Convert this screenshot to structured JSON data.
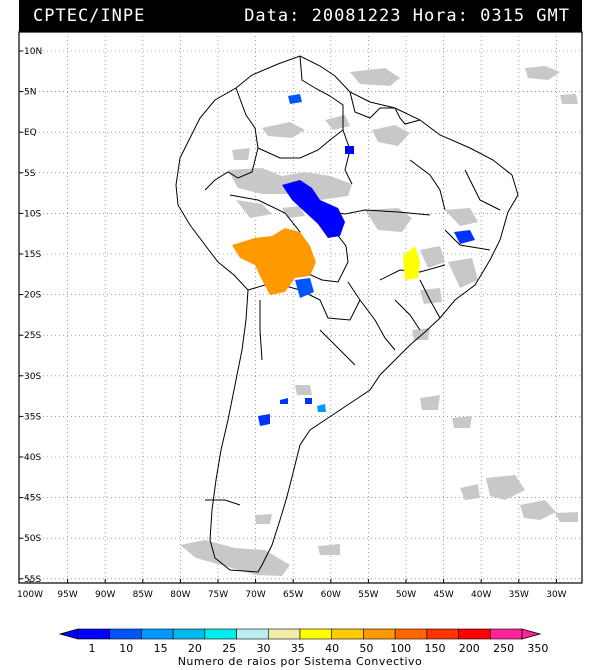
{
  "header": {
    "institution": "CPTEC/INPE",
    "datetime": "Data: 20081223 Hora: 0315 GMT"
  },
  "lat_labels": [
    "10N",
    "5N",
    "EQ",
    "5S",
    "10S",
    "15S",
    "20S",
    "25S",
    "30S",
    "35S",
    "40S",
    "45S",
    "50S",
    "55S"
  ],
  "lon_labels": [
    "100W",
    "95W",
    "90W",
    "85W",
    "80W",
    "75W",
    "70W",
    "65W",
    "60W",
    "55W",
    "50W",
    "45W",
    "40W",
    "35W",
    "30W"
  ],
  "colorbar": {
    "title": "Numero de raios por Sistema Convectivo",
    "labels": [
      "1",
      "10",
      "15",
      "20",
      "25",
      "30",
      "35",
      "40",
      "50",
      "100",
      "150",
      "200",
      "250",
      "350"
    ],
    "colors": [
      "#0000ff",
      "#0055ff",
      "#0099ff",
      "#00bbee",
      "#00eeee",
      "#bbeeee",
      "#eeeeaa",
      "#ffff00",
      "#ffcc00",
      "#ff9900",
      "#ff6600",
      "#ff3300",
      "#ff0000",
      "#ff2299"
    ]
  },
  "colors": {
    "frame": "#000000",
    "cloud_gray": "#c8c8c8",
    "grid": "#666666"
  }
}
